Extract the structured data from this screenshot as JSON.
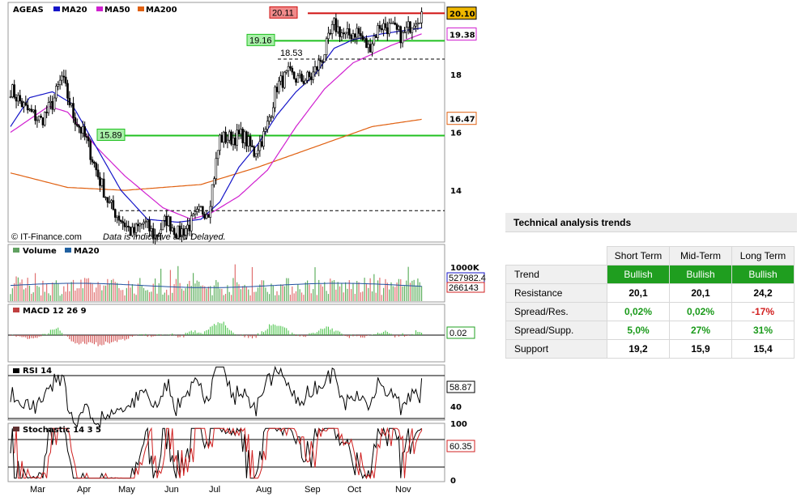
{
  "chart_data": {
    "type": "candlestick",
    "symbol": "AGEAS",
    "legend": [
      {
        "name": "AGEAS",
        "color": "#000000"
      },
      {
        "name": "MA20",
        "color": "#1515c8"
      },
      {
        "name": "MA50",
        "color": "#d020d0"
      },
      {
        "name": "MA200",
        "color": "#e06010"
      }
    ],
    "x_months": [
      "Mar",
      "Apr",
      "May",
      "Jun",
      "Jul",
      "Aug",
      "Sep",
      "Oct",
      "Nov"
    ],
    "price_ylim": [
      12.3,
      20.4
    ],
    "price_ticks": [
      "14",
      "16",
      "18"
    ],
    "close_anchors": [
      [
        0,
        17.5
      ],
      [
        8,
        16.8
      ],
      [
        16,
        16.4
      ],
      [
        22,
        17.0
      ],
      [
        27,
        17.9
      ],
      [
        33,
        16.6
      ],
      [
        40,
        15.7
      ],
      [
        46,
        14.5
      ],
      [
        52,
        13.5
      ],
      [
        58,
        13.0
      ],
      [
        64,
        12.5
      ],
      [
        70,
        12.9
      ],
      [
        76,
        12.4
      ],
      [
        82,
        13.0
      ],
      [
        88,
        12.5
      ],
      [
        94,
        12.8
      ],
      [
        100,
        13.3
      ],
      [
        104,
        13.3
      ],
      [
        110,
        15.8
      ],
      [
        116,
        15.8
      ],
      [
        122,
        15.9
      ],
      [
        128,
        15.3
      ],
      [
        134,
        16.0
      ],
      [
        140,
        17.6
      ],
      [
        146,
        18.0
      ],
      [
        152,
        17.8
      ],
      [
        158,
        17.9
      ],
      [
        164,
        18.6
      ],
      [
        170,
        19.7
      ],
      [
        176,
        19.3
      ],
      [
        182,
        19.5
      ],
      [
        188,
        18.9
      ],
      [
        194,
        19.7
      ],
      [
        200,
        19.6
      ],
      [
        206,
        19.3
      ],
      [
        212,
        19.9
      ],
      [
        216,
        20.1
      ]
    ],
    "ma200_anchors": [
      [
        0,
        14.6
      ],
      [
        30,
        14.1
      ],
      [
        60,
        14.0
      ],
      [
        100,
        14.2
      ],
      [
        130,
        14.8
      ],
      [
        160,
        15.5
      ],
      [
        190,
        16.2
      ],
      [
        216,
        16.45
      ]
    ],
    "ma50_anchors": [
      [
        0,
        16.0
      ],
      [
        20,
        16.9
      ],
      [
        30,
        16.7
      ],
      [
        45,
        15.5
      ],
      [
        60,
        14.5
      ],
      [
        80,
        13.4
      ],
      [
        95,
        13.0
      ],
      [
        105,
        13.2
      ],
      [
        120,
        13.8
      ],
      [
        135,
        14.7
      ],
      [
        150,
        16.2
      ],
      [
        165,
        17.5
      ],
      [
        180,
        18.4
      ],
      [
        200,
        19.0
      ],
      [
        216,
        19.4
      ]
    ],
    "ma20_anchors": [
      [
        0,
        16.2
      ],
      [
        10,
        17.2
      ],
      [
        22,
        17.4
      ],
      [
        32,
        17.0
      ],
      [
        45,
        15.5
      ],
      [
        58,
        14.0
      ],
      [
        72,
        13.0
      ],
      [
        88,
        12.9
      ],
      [
        100,
        13.0
      ],
      [
        110,
        13.6
      ],
      [
        120,
        14.8
      ],
      [
        130,
        15.6
      ],
      [
        140,
        16.6
      ],
      [
        150,
        17.4
      ],
      [
        160,
        18.0
      ],
      [
        170,
        18.9
      ],
      [
        180,
        19.2
      ],
      [
        195,
        19.4
      ],
      [
        216,
        19.6
      ]
    ],
    "resistance_levels": [
      {
        "label": "20.11",
        "value": 20.11,
        "color": "#d01010",
        "badge_bg": "#f08a8a"
      },
      {
        "label": "19.16",
        "value": 19.16,
        "color": "#20c020",
        "badge_bg": "#a8f0a8"
      },
      {
        "label": "15.89",
        "value": 15.89,
        "color": "#20c020",
        "badge_bg": "#a8f0a8"
      }
    ],
    "dashed_levels": [
      {
        "label": "18.53",
        "value": 18.53
      },
      {
        "label": "",
        "value": 13.3
      }
    ],
    "price_badges": [
      {
        "label": "20.10",
        "bg": "#f0b800",
        "border": "#000000",
        "value": 20.1
      },
      {
        "label": "19.38",
        "bg": "#ffffff",
        "border": "#d020d0",
        "color": "#d020d0",
        "value": 19.38
      },
      {
        "label": "16.47",
        "bg": "#ffffff",
        "border": "#e06010",
        "color": "#e06010",
        "value": 16.47
      }
    ],
    "volume": {
      "title": "Volume",
      "ma_label": "MA20",
      "max_label": "1000K",
      "ylim": [
        0,
        1000000
      ],
      "badges": [
        {
          "label": "527982.4",
          "color": "#1515c8",
          "value": 527982.4
        },
        {
          "label": "266143",
          "color": "#d02020",
          "value": 266143
        }
      ]
    },
    "macd": {
      "title": "MACD 12 26 9",
      "value_label": "0.02",
      "value": 0.02
    },
    "rsi": {
      "title": "RSI 14",
      "ticks": [
        "40"
      ],
      "levels": [
        30,
        70
      ],
      "value_label": "58.87",
      "value": 58.87
    },
    "stochastic": {
      "title": "Stochastic 14 3 5",
      "ticks": [
        "100",
        "0"
      ],
      "levels": [
        20,
        80
      ],
      "value_label": "60.35",
      "value": 60.35
    },
    "copyright": "© IT-Finance.com",
    "disclaimer": "Data is Indicative and Delayed."
  },
  "trends": {
    "title": "Technical analysis trends",
    "columns": [
      "Short Term",
      "Mid-Term",
      "Long Term"
    ],
    "rows": [
      {
        "label": "Trend",
        "values": [
          "Bullish",
          "Bullish",
          "Bullish"
        ],
        "kind": "bull"
      },
      {
        "label": "Resistance",
        "values": [
          "20,1",
          "20,1",
          "24,2"
        ],
        "kind": "plain"
      },
      {
        "label": "Spread/Res.",
        "values": [
          "0,02%",
          "0,02%",
          "-17%"
        ],
        "kind": "colored"
      },
      {
        "label": "Spread/Supp.",
        "values": [
          "5,0%",
          "27%",
          "31%"
        ],
        "kind": "colored"
      },
      {
        "label": "Support",
        "values": [
          "19,2",
          "15,9",
          "15,4"
        ],
        "kind": "plain"
      }
    ]
  }
}
